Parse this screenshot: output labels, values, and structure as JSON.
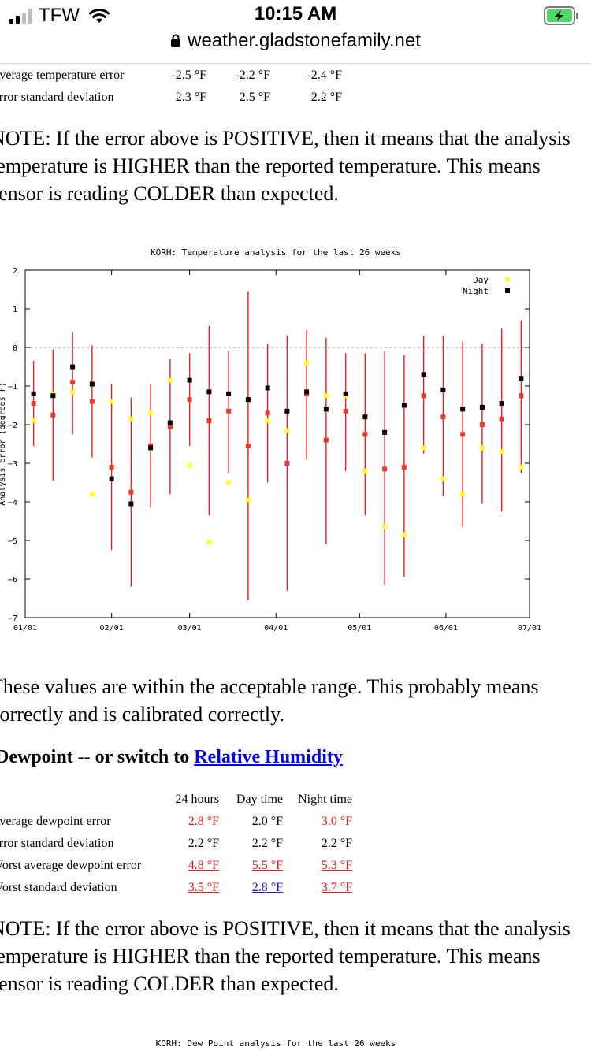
{
  "status_bar": {
    "carrier": "TFW",
    "time": "10:15 AM",
    "url": "weather.gladstonefamily.net"
  },
  "temp_table": {
    "rows": [
      {
        "label": "Average temperature error",
        "v24": "-2.5 °F",
        "day": "-2.2 °F",
        "night": "-2.4 °F"
      },
      {
        "label": "Error standard deviation",
        "v24": "2.3 °F",
        "day": "2.5 °F",
        "night": "2.2 °F"
      }
    ]
  },
  "note1": {
    "line1": "NOTE: If the error above is POSITIVE, then it means that the analysis",
    "line2": "temperature is HIGHER than the reported temperature. This means",
    "line3": "sensor is reading COLDER than expected."
  },
  "chart_data": {
    "type": "scatter",
    "title": "KORH: Temperature analysis for the last 26 weeks",
    "ylabel": "Analysis error (degrees F)",
    "ylim": [
      -7,
      2
    ],
    "yticks": [
      "2",
      "1",
      "0",
      "−1",
      "−2",
      "−3",
      "−4",
      "−5",
      "−6",
      "−7"
    ],
    "xticks": [
      "01/01",
      "02/01",
      "03/01",
      "04/01",
      "05/01",
      "06/01",
      "07/01"
    ],
    "legend": {
      "placement": "top-right",
      "entries": [
        "Day",
        "Night"
      ]
    },
    "colors": {
      "day": "#ffff33",
      "night": "#000000",
      "mean": "#e83a2a",
      "errorbar": "#e82020"
    },
    "x": [
      "2021-01-04",
      "2021-01-11",
      "2021-01-18",
      "2021-01-25",
      "2021-02-01",
      "2021-02-08",
      "2021-02-15",
      "2021-02-22",
      "2021-03-01",
      "2021-03-08",
      "2021-03-15",
      "2021-03-22",
      "2021-03-29",
      "2021-04-05",
      "2021-04-12",
      "2021-04-19",
      "2021-04-26",
      "2021-05-03",
      "2021-05-10",
      "2021-05-17",
      "2021-05-24",
      "2021-05-31",
      "2021-06-07",
      "2021-06-14",
      "2021-06-21",
      "2021-06-28"
    ],
    "series": [
      {
        "name": "Day",
        "values": [
          -1.9,
          -1.2,
          -1.15,
          -3.8,
          -1.4,
          -1.85,
          -1.7,
          -0.85,
          -3.05,
          -5.05,
          -3.5,
          -3.95,
          -1.9,
          -2.15,
          -0.4,
          -1.25,
          -1.25,
          -3.2,
          -4.65,
          -4.85,
          -2.6,
          -3.4,
          -3.8,
          -2.6,
          -2.7,
          -3.1
        ]
      },
      {
        "name": "Night",
        "values": [
          -1.2,
          -1.25,
          -0.5,
          -0.95,
          -3.4,
          -4.05,
          -2.6,
          -1.95,
          -0.85,
          -1.15,
          -1.2,
          -1.35,
          -1.05,
          -1.65,
          -1.15,
          -1.6,
          -1.2,
          -1.8,
          -2.2,
          -1.5,
          -0.7,
          -1.1,
          -1.6,
          -1.55,
          -1.45,
          -0.8
        ]
      },
      {
        "name": "Mean",
        "values": [
          -1.45,
          -1.75,
          -0.9,
          -1.4,
          -3.1,
          -3.75,
          -2.55,
          -2.05,
          -1.35,
          -1.9,
          -1.65,
          -2.55,
          -1.7,
          -3.0,
          -1.2,
          -2.4,
          -1.65,
          -2.25,
          -3.15,
          -3.1,
          -1.25,
          -1.8,
          -2.25,
          -2.0,
          -1.85,
          -1.25
        ]
      },
      {
        "name": "Upper",
        "values": [
          -0.35,
          -0.05,
          0.4,
          0.05,
          -0.95,
          -1.3,
          -0.95,
          -0.3,
          -0.15,
          0.55,
          -0.1,
          1.45,
          0.1,
          0.3,
          0.45,
          0.25,
          -0.15,
          -0.15,
          -0.1,
          -0.2,
          0.3,
          0.3,
          0.15,
          0.1,
          0.5,
          0.7
        ]
      },
      {
        "name": "Lower",
        "values": [
          -2.55,
          -3.45,
          -2.25,
          -2.85,
          -5.25,
          -6.2,
          -4.15,
          -3.8,
          -2.55,
          -4.35,
          -3.25,
          -6.55,
          -3.5,
          -6.3,
          -2.9,
          -5.1,
          -3.2,
          -4.35,
          -6.15,
          -5.95,
          -2.75,
          -3.85,
          -4.65,
          -4.05,
          -4.25,
          -3.25
        ]
      }
    ]
  },
  "verdict": {
    "line1": "These values are within the acceptable range. This probably means",
    "line2": "correctly and is calibrated correctly."
  },
  "dew_heading": {
    "prefix": "Dewpoint -- or switch to ",
    "link": "Relative Humidity"
  },
  "dew_table": {
    "headers": [
      "24 hours",
      "Day time",
      "Night time"
    ],
    "rows": [
      {
        "label": "Average dewpoint error",
        "v24": "2.8 °F",
        "day": "2.0 °F",
        "night": "3.0 °F"
      },
      {
        "label": "Error standard deviation",
        "v24": "2.2 °F",
        "day": "2.2 °F",
        "night": "2.2 °F"
      },
      {
        "label": "Worst average dewpoint error",
        "v24": "4.8 °F",
        "day": "5.5 °F",
        "night": "5.3 °F"
      },
      {
        "label": "Worst standard deviation",
        "v24": "3.5 °F",
        "day": "2.8 °F",
        "night": "3.7 °F"
      }
    ]
  },
  "note2": {
    "line1": "NOTE: If the error above is POSITIVE, then it means that the analysis",
    "line2": "temperature is HIGHER than the reported temperature. This means",
    "line3": "sensor is reading COLDER than expected."
  },
  "chart2": {
    "title": "KORH: Dew Point analysis for the last 26 weeks"
  }
}
